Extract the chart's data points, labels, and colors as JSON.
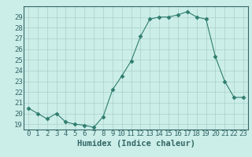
{
  "x": [
    0,
    1,
    2,
    3,
    4,
    5,
    6,
    7,
    8,
    9,
    10,
    11,
    12,
    13,
    14,
    15,
    16,
    17,
    18,
    19,
    20,
    21,
    22,
    23
  ],
  "y": [
    20.5,
    20.0,
    19.5,
    20.0,
    19.2,
    19.0,
    18.9,
    18.7,
    19.7,
    22.2,
    23.5,
    24.9,
    27.2,
    28.8,
    29.0,
    29.0,
    29.2,
    29.5,
    29.0,
    28.8,
    25.3,
    23.0,
    21.5,
    21.5
  ],
  "line_color": "#2e7d6e",
  "marker": "D",
  "marker_size": 2.5,
  "bg_color": "#cceee8",
  "grid_color": "#aacfca",
  "xlabel": "Humidex (Indice chaleur)",
  "xlim": [
    -0.5,
    23.5
  ],
  "ylim": [
    18.5,
    30.0
  ],
  "yticks": [
    19,
    20,
    21,
    22,
    23,
    24,
    25,
    26,
    27,
    28,
    29
  ],
  "xticks": [
    0,
    1,
    2,
    3,
    4,
    5,
    6,
    7,
    8,
    9,
    10,
    11,
    12,
    13,
    14,
    15,
    16,
    17,
    18,
    19,
    20,
    21,
    22,
    23
  ],
  "tick_label_fontsize": 6.5,
  "xlabel_fontsize": 7.5
}
